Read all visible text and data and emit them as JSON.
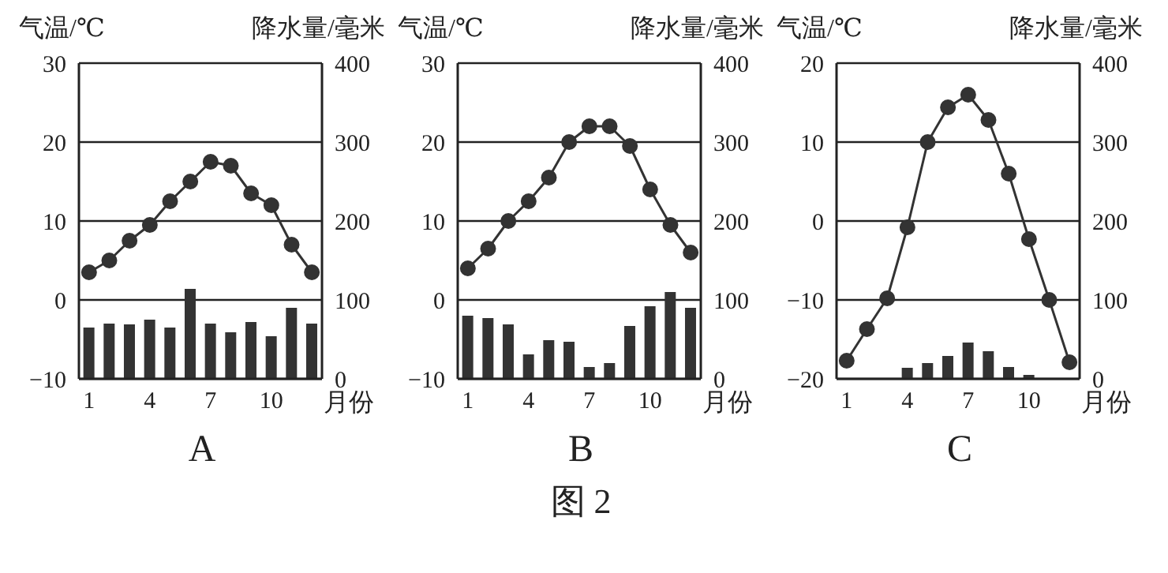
{
  "chart_data": [
    {
      "type": "line",
      "title": "A",
      "ylabel": "气温/℃",
      "y2label": "降水量/毫米",
      "xlabel": "月份",
      "categories": [
        "1",
        null,
        null,
        "4",
        null,
        null,
        "7",
        null,
        null,
        "10",
        null,
        null
      ],
      "series": [
        {
          "color": "#333333",
          "values": [
            3.5,
            5,
            7.5,
            9.5,
            12.5,
            15,
            17.5,
            17,
            13.5,
            12,
            7,
            3.5
          ]
        },
        {
          "type": "bar",
          "axis": "y2",
          "color": "#333333",
          "values": [
            65,
            70,
            69,
            75,
            65,
            114,
            70,
            59,
            72,
            54,
            90,
            70
          ]
        }
      ],
      "ylim": [
        -10,
        30
      ],
      "yticks": [
        -10,
        0,
        10,
        20,
        30
      ],
      "y2lim": [
        0,
        400
      ],
      "y2ticks": [
        0,
        100,
        200,
        300,
        400
      ],
      "grid": "y",
      "marker": "circle"
    },
    {
      "type": "line",
      "title": "B",
      "ylabel": "气温/℃",
      "y2label": "降水量/毫米",
      "xlabel": "月份",
      "categories": [
        "1",
        null,
        null,
        "4",
        null,
        null,
        "7",
        null,
        null,
        "10",
        null,
        null
      ],
      "series": [
        {
          "color": "#333333",
          "values": [
            4,
            6.5,
            10,
            12.5,
            15.5,
            20,
            22,
            22,
            19.5,
            14,
            9.5,
            6
          ]
        },
        {
          "type": "bar",
          "axis": "y2",
          "color": "#333333",
          "values": [
            80,
            77,
            69,
            31,
            49,
            47,
            15,
            20,
            67,
            92,
            110,
            90
          ]
        }
      ],
      "ylim": [
        -10,
        30
      ],
      "yticks": [
        -10,
        0,
        10,
        20,
        30
      ],
      "y2lim": [
        0,
        400
      ],
      "y2ticks": [
        0,
        100,
        200,
        300,
        400
      ],
      "grid": "y",
      "marker": "circle",
      "annotations": [
        "图 2"
      ]
    },
    {
      "type": "line",
      "title": "C",
      "ylabel": "气温/℃",
      "y2label": "降水量/毫米",
      "xlabel": "月份",
      "categories": [
        "1",
        null,
        null,
        "4",
        null,
        null,
        "7",
        null,
        null,
        "10",
        null,
        null
      ],
      "series": [
        {
          "color": "#333333",
          "values": [
            -17.7,
            -13.7,
            -9.8,
            -0.8,
            10,
            14.4,
            16,
            12.8,
            6,
            -2.3,
            -10,
            -17.9
          ]
        },
        {
          "type": "bar",
          "axis": "y2",
          "color": "#333333",
          "values": [
            0,
            0,
            0,
            14,
            20,
            29,
            46,
            35,
            15,
            5,
            0,
            0
          ]
        }
      ],
      "ylim": [
        -20,
        20
      ],
      "yticks": [
        -20,
        -10,
        0,
        10,
        20
      ],
      "y2lim": [
        0,
        400
      ],
      "y2ticks": [
        0,
        100,
        200,
        300,
        400
      ],
      "grid": "y",
      "marker": "circle"
    }
  ]
}
